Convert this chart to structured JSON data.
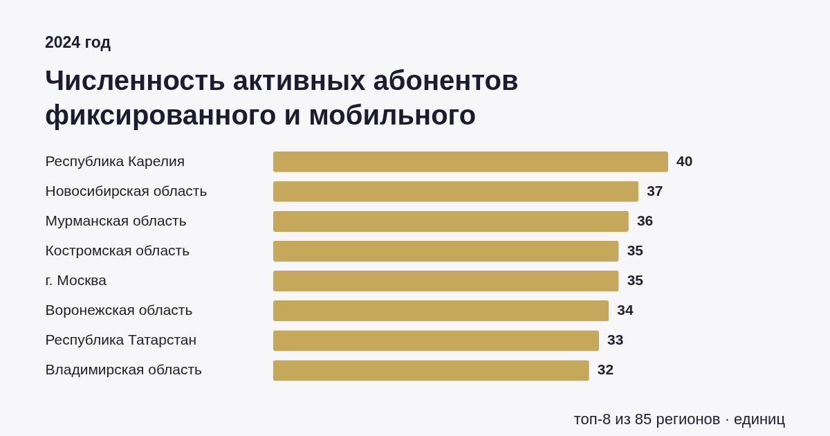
{
  "chart_data": {
    "type": "bar",
    "orientation": "horizontal",
    "title": "Численность активных абонентов фиксированного и мобильного",
    "subtitle": "2024 год",
    "categories": [
      "Республика Карелия",
      "Новосибирская область",
      "Мурманская область",
      "Костромская область",
      "г. Москва",
      "Воронежская область",
      "Республика Татарстан",
      "Владимирская область"
    ],
    "values": [
      40,
      37,
      36,
      35,
      35,
      34,
      33,
      32
    ],
    "color": "#c5a85c",
    "data_labels": true,
    "annotations": [
      "топ-8 из 85 регионов · единиц"
    ]
  }
}
